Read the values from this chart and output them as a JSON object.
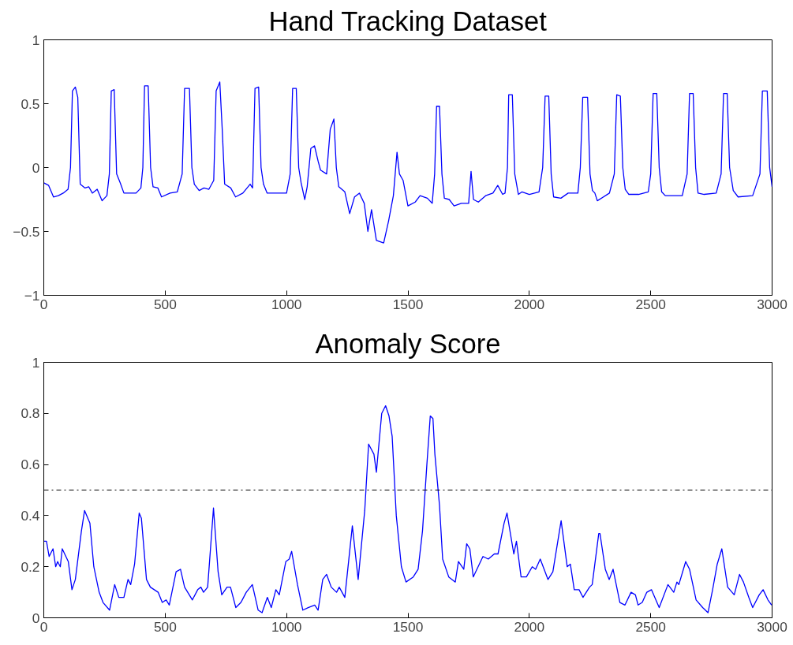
{
  "chart_data": [
    {
      "type": "line",
      "title": "Hand Tracking Dataset",
      "xlim": [
        0,
        3000
      ],
      "xticks": [
        0,
        500,
        1000,
        1500,
        2000,
        2500,
        3000
      ],
      "ylim": [
        -1,
        1
      ],
      "yticks": [
        -1,
        -0.5,
        0,
        0.5,
        1
      ],
      "grid": false,
      "line_style": "solid",
      "marker": "none",
      "series": [
        {
          "color": "#0000ff",
          "x": [
            0,
            20,
            40,
            60,
            80,
            100,
            110,
            118,
            130,
            140,
            150,
            170,
            185,
            200,
            220,
            240,
            260,
            270,
            278,
            290,
            300,
            315,
            330,
            380,
            400,
            408,
            415,
            430,
            440,
            450,
            470,
            485,
            520,
            550,
            570,
            580,
            600,
            610,
            620,
            640,
            660,
            680,
            700,
            710,
            725,
            735,
            745,
            770,
            790,
            820,
            850,
            860,
            870,
            885,
            895,
            905,
            920,
            960,
            1000,
            1015,
            1025,
            1040,
            1050,
            1060,
            1075,
            1085,
            1100,
            1115,
            1130,
            1140,
            1165,
            1180,
            1195,
            1205,
            1215,
            1240,
            1260,
            1280,
            1300,
            1320,
            1335,
            1350,
            1370,
            1400,
            1420,
            1440,
            1455,
            1465,
            1480,
            1500,
            1530,
            1550,
            1580,
            1600,
            1610,
            1618,
            1630,
            1640,
            1650,
            1670,
            1690,
            1720,
            1750,
            1760,
            1770,
            1790,
            1820,
            1850,
            1870,
            1890,
            1900,
            1910,
            1915,
            1930,
            1940,
            1955,
            1970,
            2000,
            2040,
            2055,
            2065,
            2080,
            2090,
            2100,
            2130,
            2160,
            2200,
            2210,
            2220,
            2240,
            2250,
            2260,
            2270,
            2280,
            2330,
            2350,
            2360,
            2375,
            2385,
            2395,
            2410,
            2450,
            2490,
            2500,
            2510,
            2525,
            2535,
            2545,
            2560,
            2630,
            2650,
            2660,
            2675,
            2685,
            2695,
            2720,
            2770,
            2790,
            2800,
            2815,
            2825,
            2840,
            2860,
            2920,
            2950,
            2960,
            2980,
            2990,
            3000
          ],
          "values": [
            -0.12,
            -0.14,
            -0.23,
            -0.22,
            -0.2,
            -0.17,
            0.0,
            0.6,
            0.63,
            0.55,
            -0.13,
            -0.16,
            -0.15,
            -0.2,
            -0.17,
            -0.26,
            -0.22,
            -0.05,
            0.6,
            0.61,
            -0.05,
            -0.12,
            -0.2,
            -0.2,
            -0.16,
            0.0,
            0.64,
            0.64,
            0.0,
            -0.15,
            -0.16,
            -0.23,
            -0.2,
            -0.19,
            -0.05,
            0.62,
            0.62,
            0.0,
            -0.13,
            -0.18,
            -0.16,
            -0.17,
            -0.1,
            0.6,
            0.67,
            0.3,
            -0.13,
            -0.16,
            -0.23,
            -0.2,
            -0.13,
            -0.16,
            0.62,
            0.63,
            0.0,
            -0.13,
            -0.2,
            -0.2,
            -0.2,
            -0.05,
            0.62,
            0.62,
            0.0,
            -0.12,
            -0.25,
            -0.15,
            0.15,
            0.17,
            0.05,
            -0.02,
            -0.05,
            0.3,
            0.38,
            0.0,
            -0.15,
            -0.19,
            -0.36,
            -0.23,
            -0.2,
            -0.28,
            -0.5,
            -0.33,
            -0.57,
            -0.59,
            -0.42,
            -0.22,
            0.12,
            -0.05,
            -0.1,
            -0.3,
            -0.27,
            -0.22,
            -0.24,
            -0.28,
            -0.05,
            0.48,
            0.48,
            -0.05,
            -0.24,
            -0.25,
            -0.3,
            -0.28,
            -0.28,
            -0.03,
            -0.25,
            -0.27,
            -0.22,
            -0.2,
            -0.14,
            -0.21,
            -0.2,
            0.0,
            0.57,
            0.57,
            -0.05,
            -0.21,
            -0.19,
            -0.21,
            -0.19,
            0.0,
            0.56,
            0.56,
            -0.05,
            -0.23,
            -0.24,
            -0.2,
            -0.2,
            0.0,
            0.55,
            0.55,
            -0.05,
            -0.18,
            -0.2,
            -0.26,
            -0.2,
            -0.05,
            0.57,
            0.56,
            0.0,
            -0.17,
            -0.21,
            -0.21,
            -0.19,
            -0.05,
            0.58,
            0.58,
            0.0,
            -0.19,
            -0.22,
            -0.22,
            -0.05,
            0.58,
            0.58,
            0.0,
            -0.2,
            -0.21,
            -0.2,
            -0.05,
            0.58,
            0.58,
            0.0,
            -0.18,
            -0.23,
            -0.22,
            -0.05,
            0.6,
            0.6,
            0.0,
            -0.15
          ]
        }
      ]
    },
    {
      "type": "line",
      "title": "Anomaly Score",
      "xlim": [
        0,
        3000
      ],
      "xticks": [
        0,
        500,
        1000,
        1500,
        2000,
        2500,
        3000
      ],
      "ylim": [
        0,
        1
      ],
      "yticks": [
        0,
        0.2,
        0.4,
        0.6,
        0.8,
        1
      ],
      "grid": false,
      "line_style": "solid",
      "marker": "none",
      "ref_lines": [
        {
          "axis": "y",
          "value": 0.5,
          "color": "#000000",
          "line_style": "dashdot"
        }
      ],
      "series": [
        {
          "color": "#0000ff",
          "x": [
            0,
            11,
            22,
            38,
            49,
            57,
            68,
            76,
            101,
            116,
            130,
            155,
            168,
            190,
            206,
            228,
            244,
            271,
            292,
            309,
            330,
            347,
            358,
            374,
            393,
            402,
            423,
            439,
            471,
            488,
            504,
            517,
            545,
            563,
            580,
            612,
            634,
            647,
            658,
            675,
            699,
            718,
            733,
            755,
            769,
            791,
            812,
            834,
            859,
            883,
            899,
            921,
            937,
            956,
            970,
            997,
            1011,
            1021,
            1045,
            1067,
            1089,
            1116,
            1130,
            1149,
            1165,
            1184,
            1206,
            1217,
            1240,
            1271,
            1295,
            1322,
            1338,
            1360,
            1370,
            1392,
            1408,
            1422,
            1435,
            1452,
            1473,
            1492,
            1522,
            1542,
            1560,
            1578,
            1592,
            1603,
            1611,
            1630,
            1643,
            1668,
            1695,
            1708,
            1730,
            1742,
            1755,
            1769,
            1809,
            1831,
            1856,
            1871,
            1896,
            1908,
            1936,
            1947,
            1966,
            1988,
            2012,
            2026,
            2045,
            2077,
            2097,
            2131,
            2156,
            2169,
            2185,
            2205,
            2221,
            2248,
            2259,
            2286,
            2291,
            2313,
            2329,
            2345,
            2373,
            2394,
            2419,
            2437,
            2448,
            2465,
            2484,
            2503,
            2535,
            2571,
            2595,
            2608,
            2616,
            2644,
            2660,
            2687,
            2714,
            2736,
            2755,
            2774,
            2793,
            2817,
            2844,
            2866,
            2882,
            2904,
            2920,
            2947,
            2963,
            2983,
            2998
          ],
          "values": [
            0.3,
            0.3,
            0.24,
            0.27,
            0.2,
            0.22,
            0.2,
            0.27,
            0.22,
            0.11,
            0.15,
            0.34,
            0.42,
            0.37,
            0.2,
            0.1,
            0.06,
            0.03,
            0.13,
            0.08,
            0.08,
            0.15,
            0.13,
            0.21,
            0.41,
            0.39,
            0.15,
            0.12,
            0.1,
            0.06,
            0.07,
            0.05,
            0.18,
            0.19,
            0.12,
            0.07,
            0.11,
            0.12,
            0.1,
            0.12,
            0.43,
            0.18,
            0.09,
            0.12,
            0.12,
            0.04,
            0.06,
            0.1,
            0.13,
            0.03,
            0.02,
            0.08,
            0.04,
            0.11,
            0.09,
            0.22,
            0.23,
            0.26,
            0.13,
            0.03,
            0.04,
            0.05,
            0.03,
            0.15,
            0.17,
            0.12,
            0.1,
            0.12,
            0.08,
            0.36,
            0.15,
            0.42,
            0.68,
            0.64,
            0.57,
            0.8,
            0.83,
            0.79,
            0.71,
            0.4,
            0.2,
            0.14,
            0.16,
            0.19,
            0.34,
            0.6,
            0.79,
            0.78,
            0.64,
            0.44,
            0.23,
            0.16,
            0.14,
            0.22,
            0.19,
            0.29,
            0.27,
            0.16,
            0.24,
            0.23,
            0.25,
            0.25,
            0.37,
            0.41,
            0.25,
            0.3,
            0.16,
            0.16,
            0.2,
            0.19,
            0.23,
            0.15,
            0.18,
            0.38,
            0.2,
            0.21,
            0.11,
            0.11,
            0.08,
            0.12,
            0.13,
            0.33,
            0.33,
            0.19,
            0.15,
            0.19,
            0.06,
            0.05,
            0.1,
            0.09,
            0.05,
            0.06,
            0.1,
            0.11,
            0.04,
            0.13,
            0.1,
            0.14,
            0.13,
            0.22,
            0.19,
            0.07,
            0.04,
            0.02,
            0.11,
            0.21,
            0.27,
            0.12,
            0.09,
            0.17,
            0.14,
            0.08,
            0.04,
            0.09,
            0.11,
            0.07,
            0.05
          ]
        }
      ]
    }
  ]
}
